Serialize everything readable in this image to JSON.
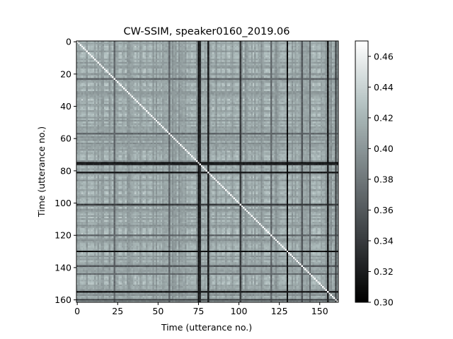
{
  "chart_data": {
    "type": "heatmap",
    "title": "CW-SSIM, speaker0160_2019.06",
    "xlabel": "Time (utterance no.)",
    "ylabel": "Time (utterance no.)",
    "n": 162,
    "xlim": [
      0,
      161
    ],
    "ylim": [
      0,
      161
    ],
    "y_inverted": true,
    "x_ticks": [
      "0",
      "25",
      "50",
      "75",
      "100",
      "125",
      "150"
    ],
    "y_ticks": [
      "0",
      "20",
      "40",
      "60",
      "80",
      "100",
      "120",
      "140",
      "160"
    ],
    "colorbar": {
      "vmin": 0.3,
      "vmax": 0.47,
      "ticks": [
        "0.30",
        "0.32",
        "0.34",
        "0.36",
        "0.38",
        "0.40",
        "0.42",
        "0.44",
        "0.46"
      ],
      "colormap": "bone"
    },
    "diagonal_value": 0.47,
    "typical_value_range": [
      0.39,
      0.43
    ],
    "dark_utterances": [
      {
        "index": 75,
        "value": 0.31
      },
      {
        "index": 76,
        "value": 0.33
      },
      {
        "index": 81,
        "value": 0.32
      },
      {
        "index": 101,
        "value": 0.34
      },
      {
        "index": 130,
        "value": 0.31
      },
      {
        "index": 155,
        "value": 0.32
      },
      {
        "index": 160,
        "value": 0.34
      }
    ],
    "dim_utterances": [
      {
        "index": 23,
        "value": 0.37
      },
      {
        "index": 57,
        "value": 0.37
      },
      {
        "index": 120,
        "value": 0.37
      },
      {
        "index": 139,
        "value": 0.36
      },
      {
        "index": 144,
        "value": 0.37
      }
    ]
  }
}
